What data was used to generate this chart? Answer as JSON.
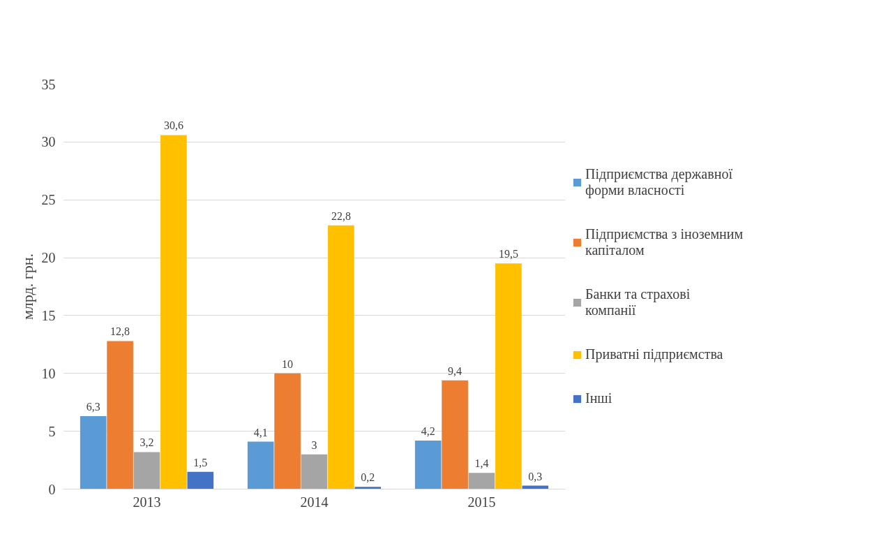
{
  "chart_data": {
    "type": "bar",
    "categories": [
      "2013",
      "2014",
      "2015"
    ],
    "ylabel": "млрд. грн.",
    "ylim": [
      0,
      35
    ],
    "yticks": [
      0,
      5,
      10,
      15,
      20,
      25,
      30,
      35
    ],
    "grid": "y",
    "legend": "right",
    "series": [
      {
        "name": "Підприємства державної форми власності",
        "color": "#5b9bd5",
        "values": [
          6.3,
          4.1,
          4.2
        ],
        "value_labels": [
          "6,3",
          "4,1",
          "4,2"
        ]
      },
      {
        "name": "Підприємства з іноземним капіталом",
        "color": "#ed7d31",
        "values": [
          12.8,
          10,
          9.4
        ],
        "value_labels": [
          "12,8",
          "10",
          "9,4"
        ]
      },
      {
        "name": "Банки та страхові компанії",
        "color": "#a5a5a5",
        "values": [
          3.2,
          3,
          1.4
        ],
        "value_labels": [
          "3,2",
          "3",
          "1,4"
        ]
      },
      {
        "name": "Приватні підприємства",
        "color": "#ffc000",
        "values": [
          30.6,
          22.8,
          19.5
        ],
        "value_labels": [
          "30,6",
          "22,8",
          "19,5"
        ]
      },
      {
        "name": "Інші",
        "color": "#4472c4",
        "values": [
          1.5,
          0.2,
          0.3
        ],
        "value_labels": [
          "1,5",
          "0,2",
          "0,3"
        ]
      }
    ]
  }
}
